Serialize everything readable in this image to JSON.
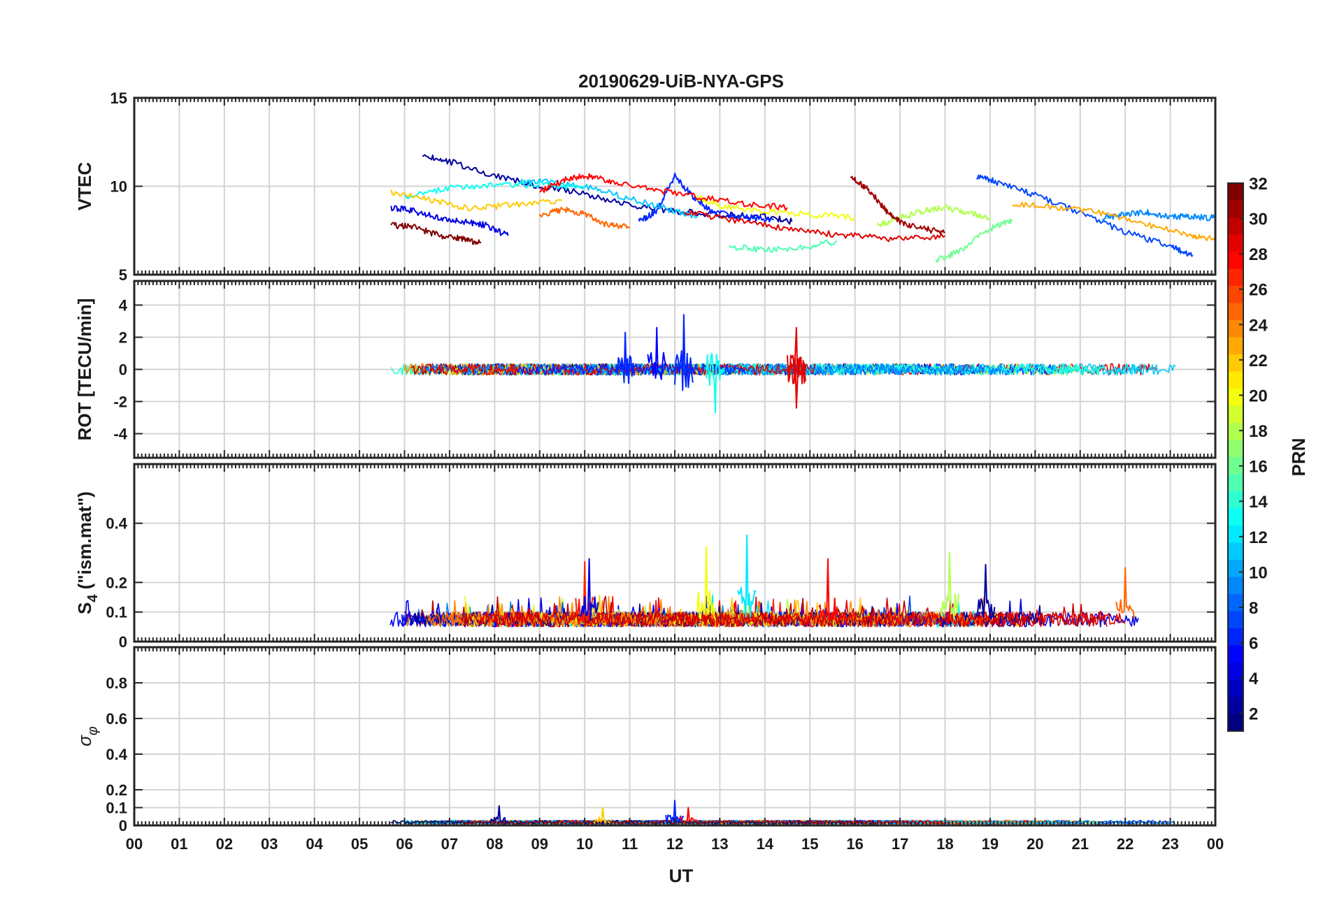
{
  "chart_data": {
    "type": "line",
    "title": "20190629-UiB-NYA-GPS",
    "xlabel": "UT",
    "x_ticks": [
      "00",
      "01",
      "02",
      "03",
      "04",
      "05",
      "06",
      "07",
      "08",
      "09",
      "10",
      "11",
      "12",
      "13",
      "14",
      "15",
      "16",
      "17",
      "18",
      "19",
      "20",
      "21",
      "22",
      "23",
      "00"
    ],
    "xlim": [
      0,
      24
    ],
    "grid": true,
    "colorbar": {
      "label": "PRN",
      "range": [
        1,
        32
      ],
      "ticks": [
        "2",
        "4",
        "6",
        "8",
        "10",
        "12",
        "14",
        "16",
        "18",
        "20",
        "22",
        "24",
        "26",
        "28",
        "30",
        "32"
      ],
      "colormap": "jet"
    },
    "panels": [
      {
        "id": "vtec",
        "ylabel": "VTEC",
        "ylim": [
          5,
          15
        ],
        "y_ticks": [
          "5",
          "10",
          "15"
        ],
        "series": [
          {
            "prn": 2,
            "x": [
              6.4,
              7.0,
              8.0,
              9.0,
              10.0,
              11.0,
              12.0,
              13.0,
              14.0,
              14.6
            ],
            "y": [
              11.8,
              11.4,
              10.6,
              10.0,
              9.6,
              8.9,
              8.6,
              8.4,
              8.3,
              8.0
            ]
          },
          {
            "prn": 4,
            "x": [
              5.7,
              6.2,
              6.8,
              7.3,
              7.8,
              8.3
            ],
            "y": [
              8.8,
              8.6,
              8.2,
              8.0,
              7.8,
              7.2
            ]
          },
          {
            "prn": 6,
            "x": [
              11.2,
              11.6,
              12.0,
              12.4,
              12.8,
              13.4,
              14.2
            ],
            "y": [
              8.0,
              8.6,
              10.6,
              9.4,
              8.6,
              8.3,
              8.1
            ]
          },
          {
            "prn": 7,
            "x": [
              18.7,
              19.2,
              20.0,
              21.0,
              22.0,
              23.0,
              23.5
            ],
            "y": [
              10.6,
              10.2,
              9.5,
              8.5,
              7.4,
              6.6,
              6.1
            ]
          },
          {
            "prn": 9,
            "x": [
              21.5,
              22.0,
              22.5,
              23.0,
              23.5,
              24.0
            ],
            "y": [
              8.2,
              8.4,
              8.5,
              8.3,
              8.3,
              8.2
            ]
          },
          {
            "prn": 11,
            "x": [
              8.5,
              9.0,
              10.0,
              11.0,
              12.0,
              12.5
            ],
            "y": [
              10.2,
              10.3,
              10.0,
              9.3,
              8.6,
              8.3
            ]
          },
          {
            "prn": 13,
            "x": [
              6.0,
              7.0,
              8.0,
              9.0,
              10.0
            ],
            "y": [
              9.4,
              9.9,
              10.1,
              10.1,
              9.9
            ]
          },
          {
            "prn": 15,
            "x": [
              13.2,
              14.0,
              15.0,
              15.6
            ],
            "y": [
              6.6,
              6.4,
              6.6,
              6.9
            ]
          },
          {
            "prn": 16,
            "x": [
              17.8,
              18.3,
              19.0,
              19.5
            ],
            "y": [
              5.8,
              6.3,
              7.6,
              8.1
            ]
          },
          {
            "prn": 18,
            "x": [
              16.5,
              17.0,
              17.5,
              18.0,
              18.5,
              19.0
            ],
            "y": [
              7.8,
              8.2,
              8.6,
              8.8,
              8.5,
              8.2
            ]
          },
          {
            "prn": 20,
            "x": [
              12.5,
              13.0,
              14.0,
              15.0,
              16.0
            ],
            "y": [
              9.4,
              8.9,
              8.6,
              8.4,
              8.2
            ]
          },
          {
            "prn": 22,
            "x": [
              5.7,
              6.5,
              7.5,
              8.5,
              9.5
            ],
            "y": [
              9.7,
              9.3,
              8.7,
              9.0,
              9.2
            ]
          },
          {
            "prn": 23,
            "x": [
              19.5,
              20.5,
              21.5,
              22.5,
              23.5,
              24.0
            ],
            "y": [
              9.0,
              8.8,
              8.5,
              7.8,
              7.2,
              7.0
            ]
          },
          {
            "prn": 25,
            "x": [
              9.0,
              9.5,
              10.0,
              10.5,
              11.0
            ],
            "y": [
              8.3,
              8.7,
              8.4,
              7.8,
              7.7
            ]
          },
          {
            "prn": 28,
            "x": [
              9.0,
              9.6,
              10.0,
              10.6,
              11.5,
              12.5,
              13.5,
              14.5
            ],
            "y": [
              9.7,
              10.4,
              10.6,
              10.3,
              9.8,
              9.4,
              9.0,
              8.8
            ]
          },
          {
            "prn": 29,
            "x": [
              12.2,
              13.0,
              14.0,
              15.0,
              16.0,
              17.0,
              18.0
            ],
            "y": [
              8.6,
              8.2,
              7.8,
              7.4,
              7.2,
              7.0,
              7.2
            ]
          },
          {
            "prn": 31,
            "x": [
              15.9,
              16.3,
              16.7,
              17.0,
              17.5,
              18.0
            ],
            "y": [
              10.6,
              9.8,
              8.6,
              8.0,
              7.6,
              7.4
            ]
          },
          {
            "prn": 32,
            "x": [
              5.7,
              6.2,
              6.8,
              7.3,
              7.7
            ],
            "y": [
              7.8,
              7.7,
              7.2,
              7.0,
              6.8
            ]
          }
        ]
      },
      {
        "id": "rot",
        "ylabel": "ROT [TECU/min]",
        "ylim": [
          -5.5,
          5.5
        ],
        "y_ticks": [
          "-4",
          "-2",
          "0",
          "2",
          "4"
        ]
      },
      {
        "id": "s4",
        "ylabel": "S4 (\"ism.mat\")",
        "ylabel_main": "S",
        "ylabel_sub": "4",
        "ylabel_rest": " (\"ism.mat\")",
        "ylim": [
          0,
          0.6
        ],
        "y_ticks": [
          "0",
          "0.1",
          "0.2",
          "0.4"
        ]
      },
      {
        "id": "sigma",
        "ylabel": "σφ",
        "ylabel_main": "σ",
        "ylabel_sub": "φ",
        "ylim": [
          0,
          1
        ],
        "y_ticks": [
          "0",
          "0.1",
          "0.2",
          "0.4",
          "0.6",
          "0.8"
        ]
      }
    ],
    "data_coverage_ut": [
      5.65,
      24.0
    ],
    "spike_events": [
      {
        "panel": "rot",
        "x": 10.9,
        "prn": 6,
        "value": 2.3
      },
      {
        "panel": "rot",
        "x": 11.6,
        "prn": 5,
        "value": 2.6
      },
      {
        "panel": "rot",
        "x": 12.2,
        "prn": 6,
        "value": 3.4
      },
      {
        "panel": "rot",
        "x": 12.9,
        "prn": 13,
        "value": -2.7
      },
      {
        "panel": "rot",
        "x": 14.7,
        "prn": 29,
        "value": 2.6
      },
      {
        "panel": "rot",
        "x": 14.7,
        "prn": 29,
        "value": -2.4
      },
      {
        "panel": "s4",
        "x": 10.0,
        "prn": 27,
        "value": 0.27
      },
      {
        "panel": "s4",
        "x": 10.1,
        "prn": 4,
        "value": 0.28
      },
      {
        "panel": "s4",
        "x": 12.7,
        "prn": 20,
        "value": 0.32
      },
      {
        "panel": "s4",
        "x": 13.6,
        "prn": 12,
        "value": 0.36
      },
      {
        "panel": "s4",
        "x": 15.4,
        "prn": 28,
        "value": 0.28
      },
      {
        "panel": "s4",
        "x": 18.1,
        "prn": 18,
        "value": 0.3
      },
      {
        "panel": "s4",
        "x": 18.9,
        "prn": 2,
        "value": 0.26
      },
      {
        "panel": "s4",
        "x": 22.0,
        "prn": 25,
        "value": 0.25
      },
      {
        "panel": "sigma",
        "x": 8.1,
        "prn": 2,
        "value": 0.11
      },
      {
        "panel": "sigma",
        "x": 12.0,
        "prn": 6,
        "value": 0.14
      },
      {
        "panel": "sigma",
        "x": 12.3,
        "prn": 28,
        "value": 0.1
      },
      {
        "panel": "sigma",
        "x": 10.4,
        "prn": 22,
        "value": 0.1
      }
    ]
  }
}
